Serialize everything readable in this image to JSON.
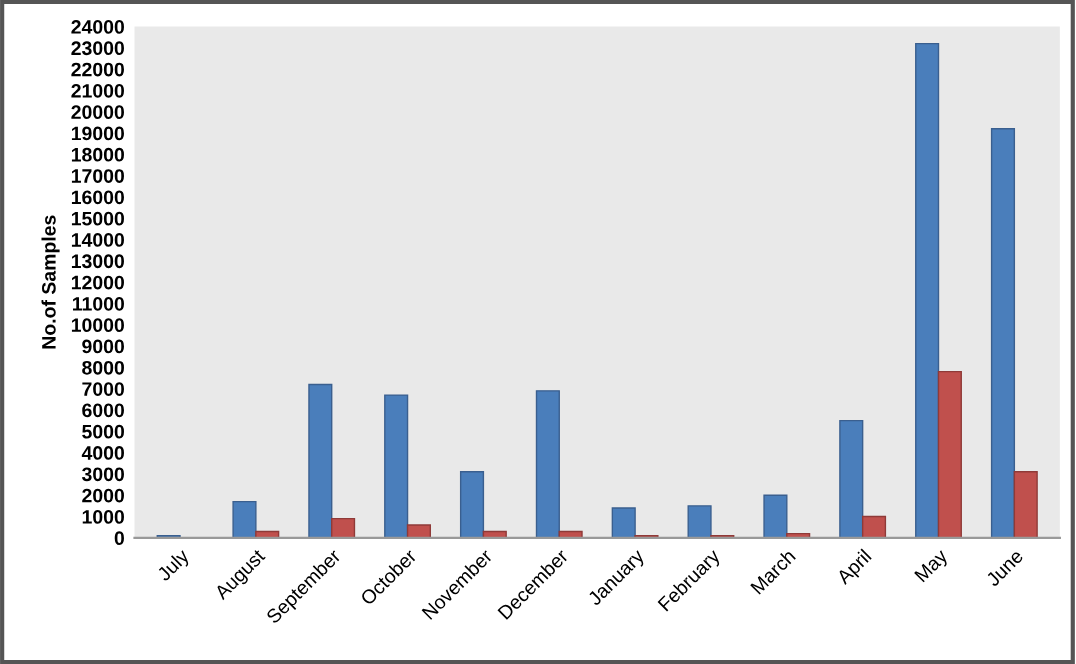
{
  "chart_data": {
    "type": "bar",
    "ylabel": "No.of Samples",
    "categories": [
      "July",
      "August",
      "September",
      "October",
      "November",
      "December",
      "January",
      "February",
      "March",
      "April",
      "May",
      "June"
    ],
    "series": [
      {
        "color": "#4a7ebb",
        "values": [
          100,
          1700,
          7200,
          6700,
          3100,
          6900,
          1400,
          1500,
          2000,
          5500,
          23200,
          19200
        ]
      },
      {
        "color": "#c0504d",
        "values": [
          null,
          300,
          900,
          600,
          300,
          300,
          100,
          100,
          200,
          1000,
          7800,
          3100
        ]
      }
    ],
    "ylim": [
      0,
      24000
    ],
    "yticks": [
      0,
      1000,
      2000,
      3000,
      4000,
      5000,
      6000,
      7000,
      8000,
      9000,
      10000,
      11000,
      12000,
      13000,
      14000,
      15000,
      16000,
      17000,
      18000,
      19000,
      20000,
      21000,
      22000,
      23000,
      24000
    ],
    "grid": false,
    "legend": false
  }
}
